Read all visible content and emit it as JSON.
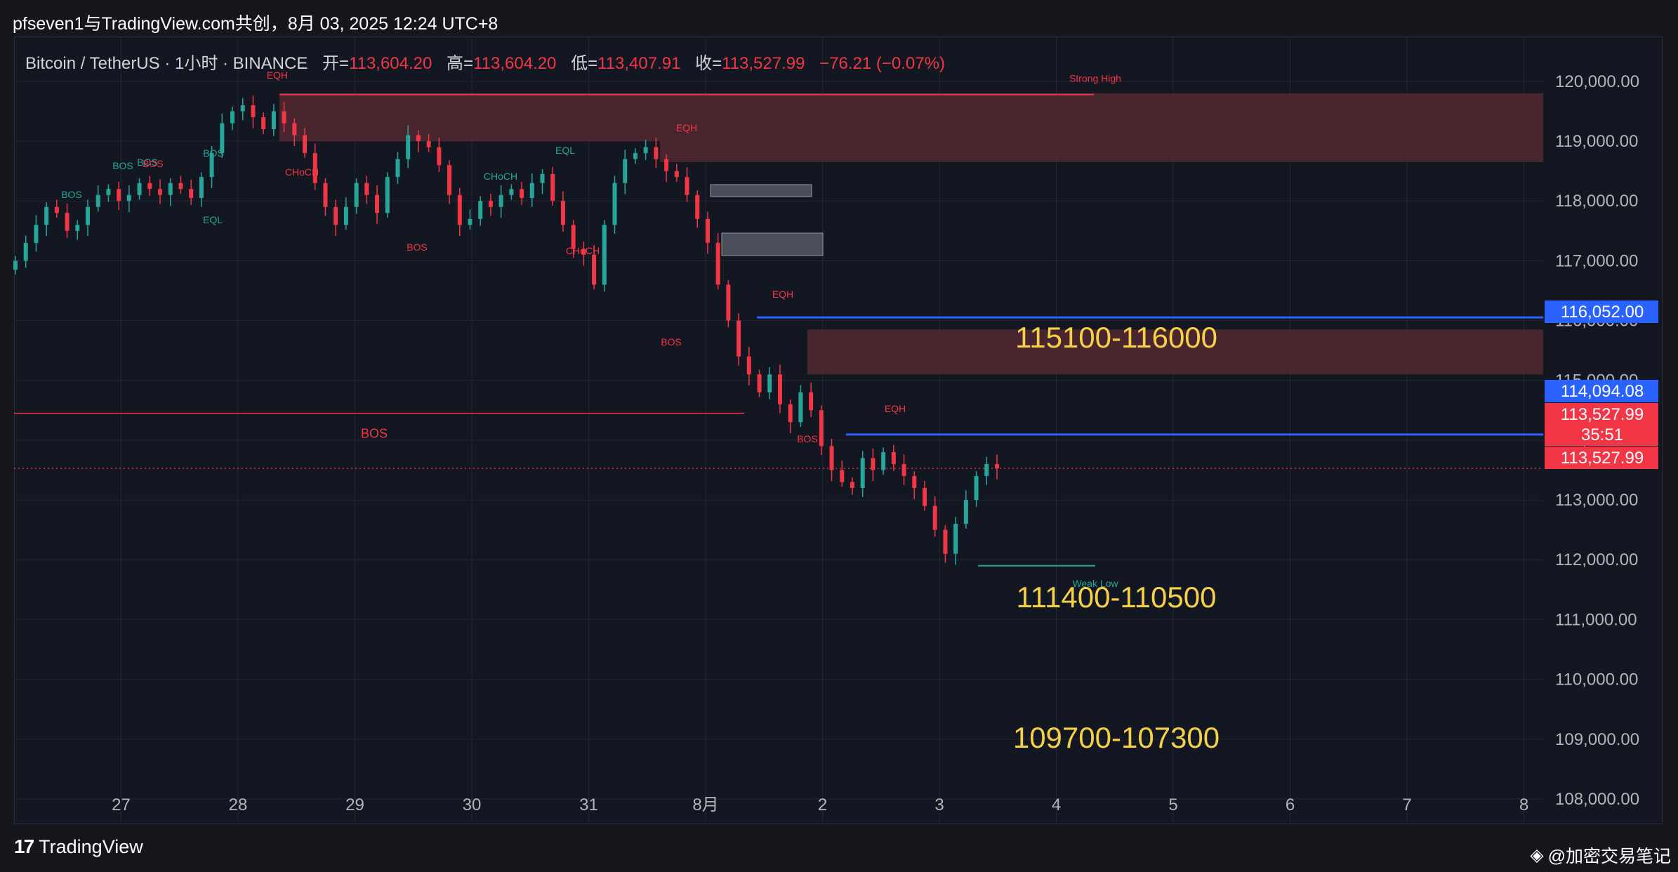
{
  "header": {
    "title": "pfseven1与TradingView.com共创，8月 03, 2025 12:24 UTC+8"
  },
  "legend": {
    "symbol": "Bitcoin / TetherUS · 1小时 · BINANCE",
    "open_label": "开=",
    "open": "113,604.20",
    "high_label": "高=",
    "high": "113,604.20",
    "low_label": "低=",
    "low": "113,407.91",
    "close_label": "收=",
    "close": "113,527.99",
    "change": "−76.21 (−0.07%)"
  },
  "footer": {
    "brand": "TradingView",
    "watermark": "@加密交易笔记"
  },
  "colors": {
    "up": "#26a69a",
    "down": "#f23645",
    "zone": "#5c2b33",
    "blue": "#2962ff",
    "target": "#f6d147"
  },
  "chart_data": {
    "type": "candlestick",
    "title": "",
    "xlabel": "",
    "ylabel": "",
    "ylim": [
      107600,
      120750
    ],
    "x_ticks": [
      "27",
      "28",
      "29",
      "30",
      "31",
      "8月",
      "2",
      "3",
      "4",
      "5",
      "6",
      "7",
      "8"
    ],
    "y_ticks": [
      "120,000.00",
      "119,000.00",
      "118,000.00",
      "117,000.00",
      "116,000.00",
      "115,000.00",
      "114,000.00",
      "113,000.00",
      "112,000.00",
      "111,000.00",
      "110,000.00",
      "109,000.00",
      "108,000.00"
    ],
    "y_tick_values": [
      120000,
      119000,
      118000,
      117000,
      116000,
      115000,
      114000,
      113000,
      112000,
      111000,
      110000,
      109000,
      108000
    ],
    "start_label": "26",
    "grid": true,
    "candles_close_series": [
      117000,
      117300,
      117600,
      117900,
      117800,
      117500,
      117600,
      117900,
      118100,
      118200,
      118000,
      118100,
      118300,
      118200,
      118100,
      118300,
      118200,
      118050,
      118400,
      118800,
      119300,
      119500,
      119600,
      119400,
      119200,
      119500,
      119300,
      119100,
      118800,
      118300,
      117900,
      117600,
      117900,
      118300,
      118100,
      117800,
      118400,
      118700,
      119100,
      119000,
      118900,
      118600,
      118100,
      117600,
      117700,
      118000,
      117900,
      118100,
      118200,
      118050,
      118300,
      118450,
      118000,
      117600,
      117200,
      117100,
      116600,
      117600,
      118300,
      118700,
      118800,
      118900,
      118700,
      118500,
      118400,
      118100,
      117700,
      117300,
      116600,
      116000,
      115400,
      115100,
      114800,
      115100,
      114600,
      114300,
      114800,
      114500,
      113900,
      113500,
      113300,
      113200,
      113700,
      113500,
      113800,
      113600,
      113400,
      113200,
      112900,
      112500,
      112100,
      112600,
      113000,
      113400,
      113600,
      113528
    ],
    "price_labels": [
      {
        "value": 116052,
        "text": "116,052.00",
        "color": "#2962ff"
      },
      {
        "value": 114094.08,
        "text": "114,094.08",
        "color": "#2962ff"
      },
      {
        "value": 113527.99,
        "text": "113,527.99",
        "color": "#f23645"
      },
      {
        "value": 113527.99,
        "text": "35:51",
        "color": "#f23645"
      },
      {
        "value": 113527.99,
        "text": "113,527.99",
        "color": "#f23645"
      }
    ],
    "annotations": {
      "zones": [
        {
          "from": 119000,
          "to": 119800
        },
        {
          "from": 118650,
          "to": 119000
        },
        {
          "from": 115100,
          "to": 115850
        }
      ],
      "levels": [
        {
          "value": 119780,
          "label": "Strong High",
          "color": "#f23645"
        },
        {
          "value": 116052,
          "color": "#2962ff"
        },
        {
          "value": 114094.08,
          "color": "#2962ff"
        },
        {
          "value": 114450,
          "label": "BOS",
          "color": "#f23645"
        },
        {
          "value": 111900,
          "label": "Weak Low",
          "color": "#26a69a"
        }
      ],
      "markers": [
        {
          "text": "EQH",
          "color": "#f23645"
        },
        {
          "text": "EQH",
          "color": "#f23645"
        },
        {
          "text": "EQH",
          "color": "#f23645"
        },
        {
          "text": "EQH",
          "color": "#f23645"
        },
        {
          "text": "CHoCH",
          "color": "#f23645"
        },
        {
          "text": "CHoCH",
          "color": "#f23645"
        },
        {
          "text": "CHoCH",
          "color": "#26a69a"
        },
        {
          "text": "BOS",
          "color": "#26a69a"
        },
        {
          "text": "BOS",
          "color": "#26a69a"
        },
        {
          "text": "BOS",
          "color": "#26a69a"
        },
        {
          "text": "BOS",
          "color": "#26a69a"
        },
        {
          "text": "EQL",
          "color": "#26a69a"
        },
        {
          "text": "EQL",
          "color": "#26a69a"
        },
        {
          "text": "BOS",
          "color": "#f23645"
        },
        {
          "text": "BOS",
          "color": "#f23645"
        },
        {
          "text": "BOS",
          "color": "#f23645"
        },
        {
          "text": "BOS",
          "color": "#f23645"
        }
      ],
      "targets": [
        "115100-116000",
        "111400-110500",
        "109700-107300"
      ]
    }
  }
}
